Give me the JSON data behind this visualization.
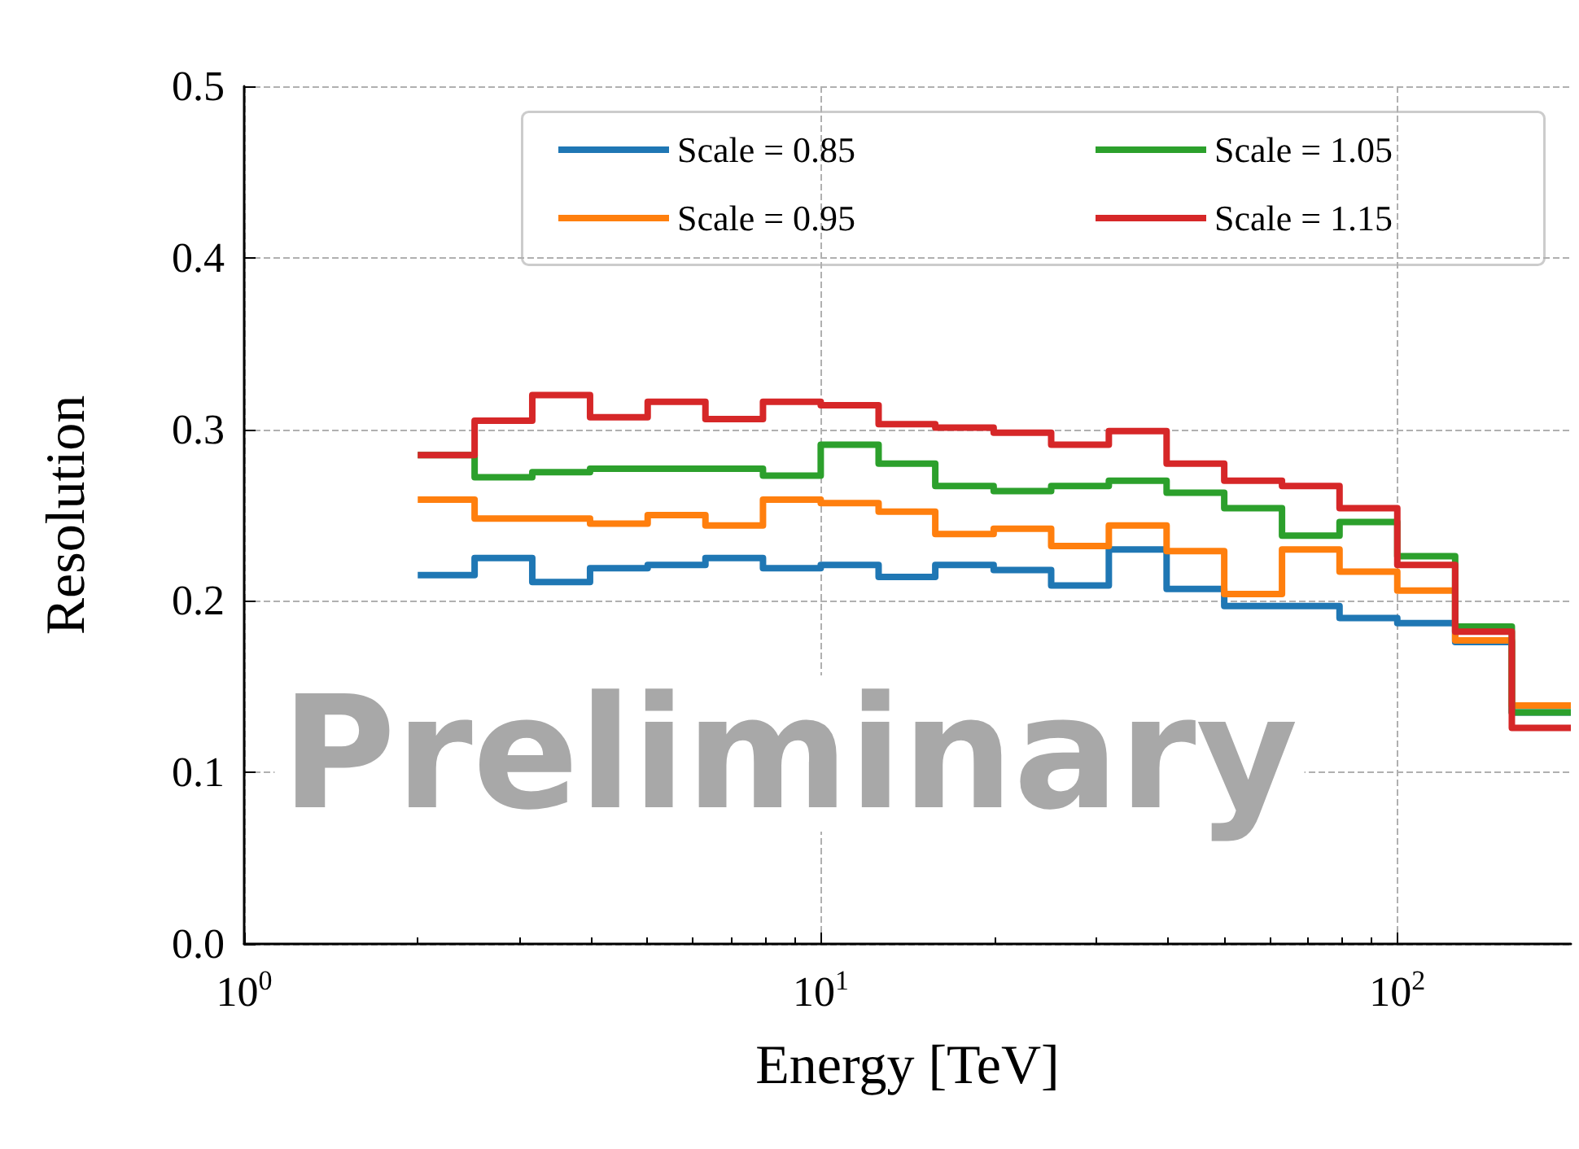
{
  "chart_data": {
    "type": "histogram",
    "xlabel": "Energy [TeV]",
    "ylabel": "Resolution",
    "log": "x",
    "grid": true,
    "legend": "top right",
    "line_style": "solid",
    "marker": "none",
    "bins": [
      2,
      2.51,
      3.16,
      3.98,
      5.01,
      6.31,
      7.94,
      10,
      12.6,
      15.8,
      19.95,
      25.1,
      31.6,
      39.8,
      50.1,
      63.1,
      79.4,
      100,
      126,
      158,
      200
    ],
    "xlim": [
      1,
      200
    ],
    "xticks": [
      {
        "value": 1,
        "label": "10$^{0}$"
      },
      {
        "value": 10,
        "label": "10$^{1}$"
      },
      {
        "value": 100,
        "label": "10$^{2}$"
      }
    ],
    "ylim": [
      0,
      0.5
    ],
    "yticks": [
      {
        "value": 0,
        "label": "0.0"
      },
      0.1,
      0.2,
      0.3,
      0.4,
      0.5
    ],
    "series": [
      {
        "name": "Scale = 0.85",
        "color": "#1f77b4",
        "values": [
          0.215,
          0.225,
          0.211,
          0.219,
          0.221,
          0.225,
          0.219,
          0.221,
          0.214,
          0.221,
          0.218,
          0.209,
          0.23,
          0.207,
          0.197,
          0.197,
          0.19,
          0.187,
          0.176,
          0.135
        ]
      },
      {
        "name": "Scale = 0.95",
        "color": "#ff7f0e",
        "values": [
          0.259,
          0.248,
          0.248,
          0.245,
          0.25,
          0.244,
          0.259,
          0.257,
          0.252,
          0.239,
          0.242,
          0.232,
          0.244,
          0.229,
          0.204,
          0.23,
          0.217,
          0.206,
          0.177,
          0.139
        ]
      },
      {
        "name": "Scale = 1.05",
        "color": "#2ca02c",
        "values": [
          0.285,
          0.272,
          0.275,
          0.277,
          0.277,
          0.277,
          0.273,
          0.291,
          0.28,
          0.267,
          0.264,
          0.267,
          0.27,
          0.263,
          0.254,
          0.238,
          0.246,
          0.226,
          0.185,
          0.135
        ]
      },
      {
        "name": "Scale = 1.15",
        "color": "#d62728",
        "values": [
          0.285,
          0.305,
          0.32,
          0.307,
          0.316,
          0.306,
          0.316,
          0.314,
          0.303,
          0.301,
          0.298,
          0.291,
          0.299,
          0.28,
          0.27,
          0.267,
          0.254,
          0.221,
          0.182,
          0.126
        ]
      }
    ],
    "annotations": [
      "Preliminary"
    ]
  }
}
